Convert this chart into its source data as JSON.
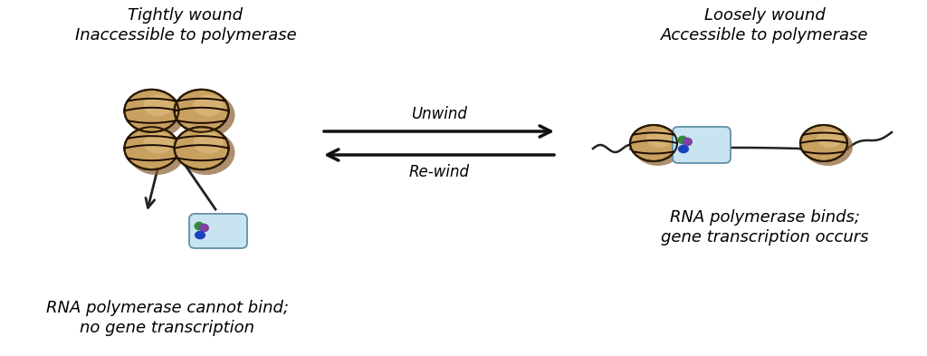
{
  "bg_color": "#ffffff",
  "title_left_line1": "Tightly wound",
  "title_left_line2": "Inaccessible to polymerase",
  "title_right_line1": "Loosely wound",
  "title_right_line2": "Accessible to polymerase",
  "caption_left_line1": "RNA polymerase cannot bind;",
  "caption_left_line2": "no gene transcription",
  "caption_right_line1": "RNA polymerase binds;",
  "caption_right_line2": "gene transcription occurs",
  "arrow_label_top": "Unwind",
  "arrow_label_bottom": "Re-wind",
  "histone_color_face": "#c8a060",
  "histone_color_light": "#e8c888",
  "histone_color_dark": "#8a6030",
  "histone_color_edge": "#2a1a05",
  "histone_stripe_color": "#1a0a02",
  "polymerase_body_color": "#c8e4f0",
  "polymerase_body_edge": "#6090a8",
  "dot_green": "#2e8b3a",
  "dot_purple": "#8040a0",
  "dot_blue": "#1a40c0",
  "dna_line_color": "#222222",
  "arrow_color": "#111111",
  "font_size_title": 13,
  "font_size_caption": 13,
  "font_size_arrow_label": 12
}
